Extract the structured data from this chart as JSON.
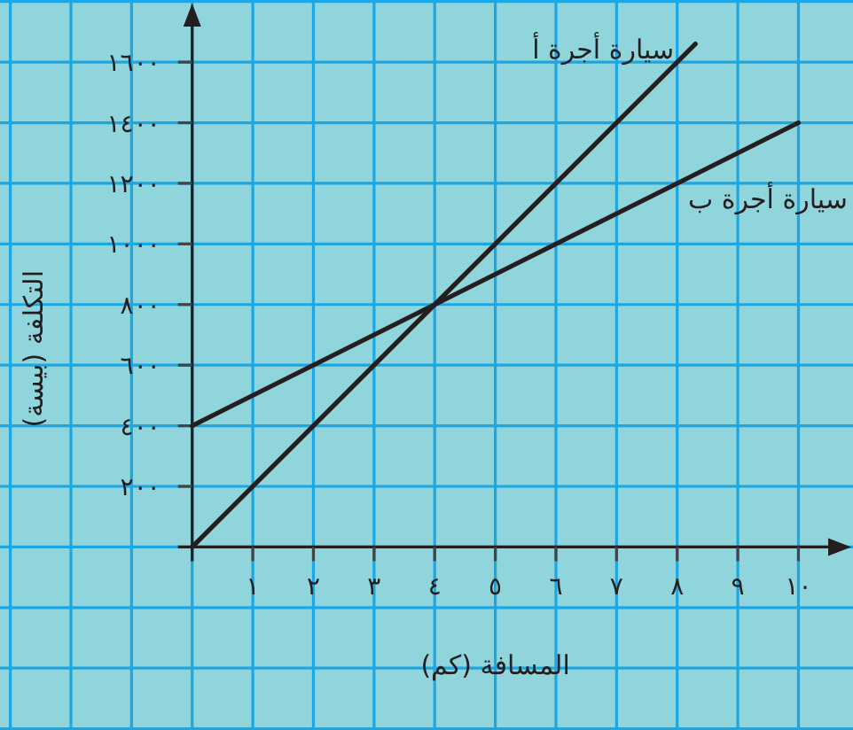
{
  "chart_data": {
    "type": "line",
    "xlabel": "المسافة (كم)",
    "ylabel": "التكلفة (بيسة)",
    "xlim": [
      -3.17,
      10.9
    ],
    "ylim": [
      -604,
      1805
    ],
    "xticks": [
      {
        "value": 1,
        "label": "١"
      },
      {
        "value": 2,
        "label": "٢"
      },
      {
        "value": 3,
        "label": "٣"
      },
      {
        "value": 4,
        "label": "٤"
      },
      {
        "value": 5,
        "label": "٥"
      },
      {
        "value": 6,
        "label": "٦"
      },
      {
        "value": 7,
        "label": "٧"
      },
      {
        "value": 8,
        "label": "٨"
      },
      {
        "value": 9,
        "label": "٩"
      },
      {
        "value": 10,
        "label": "١٠"
      }
    ],
    "yticks": [
      {
        "value": 200,
        "label": "٢٠٠"
      },
      {
        "value": 400,
        "label": "٤٠٠"
      },
      {
        "value": 600,
        "label": "٦٠٠"
      },
      {
        "value": 800,
        "label": "٨٠٠"
      },
      {
        "value": 1000,
        "label": "١٠٠٠"
      },
      {
        "value": 1200,
        "label": "١٢٠٠"
      },
      {
        "value": 1400,
        "label": "١٤٠٠"
      },
      {
        "value": 1600,
        "label": "١٦٠٠"
      }
    ],
    "grid": true,
    "line_style": "solid",
    "series": [
      {
        "name": "سيارة أجرة أ",
        "color": "#231f20",
        "x": [
          0,
          8.3
        ],
        "values": [
          0,
          1660
        ]
      },
      {
        "name": "سيارة أجرة ب",
        "color": "#231f20",
        "x": [
          0,
          10
        ],
        "values": [
          400,
          1400
        ]
      }
    ]
  }
}
